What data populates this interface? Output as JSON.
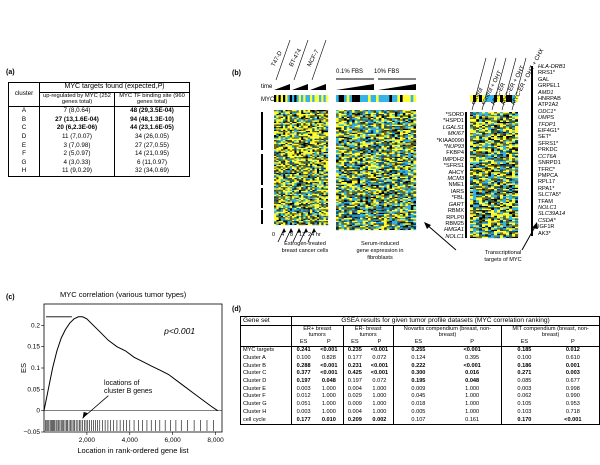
{
  "panel_a": {
    "label": "(a)",
    "header_cluster": "cluster",
    "header_title": "MYC targets found (expected,",
    "header_title_p": "P",
    "header_title_end": ")",
    "col1": "up-regulated by MYC (252 genes total)",
    "col2": "MYC TF binding site (960 genes total)",
    "rows": [
      {
        "c": "A",
        "v1": "7 (8,0.64)",
        "v2": "48 (29,3.5E-04)",
        "b1": false,
        "b2": true
      },
      {
        "c": "B",
        "v1": "27 (13,1.6E-04)",
        "v2": "94 (48,1.3E-10)",
        "b1": true,
        "b2": true
      },
      {
        "c": "C",
        "v1": "20 (6,2.3E-06)",
        "v2": "44 (23,1.6E-05)",
        "b1": true,
        "b2": true
      },
      {
        "c": "D",
        "v1": "11 (7,0.07)",
        "v2": "34 (26,0.05)",
        "b1": false,
        "b2": false
      },
      {
        "c": "E",
        "v1": "3 (7,0.98)",
        "v2": "27 (27,0.55)",
        "b1": false,
        "b2": false
      },
      {
        "c": "F",
        "v1": "2 (5,0.97)",
        "v2": "14 (21,0.95)",
        "b1": false,
        "b2": false
      },
      {
        "c": "G",
        "v1": "4 (3,0.33)",
        "v2": "6 (11,0.97)",
        "b1": false,
        "b2": false
      },
      {
        "c": "H",
        "v1": "11 (9,0.29)",
        "v2": "32 (34,0.69)",
        "b1": false,
        "b2": false
      }
    ]
  },
  "panel_b": {
    "label": "(b)",
    "cell_lines": [
      "T47-D",
      "BT-474",
      "MCF-7"
    ],
    "time_label": "time",
    "myc_label": "MYC",
    "fbs1": "0.1% FBS",
    "fbs2": "10% FBS",
    "conditions": [
      "control",
      "control + OHT",
      "MYC-ER",
      "MYC-ER + OHT",
      "MYC-ER + OHT + CHX"
    ],
    "time_ticks": [
      "0",
      "4",
      "8",
      "12",
      "24 hr"
    ],
    "caption1": [
      "Estrogen-treated",
      "breast cancer cells"
    ],
    "caption2": [
      "Serum-induced",
      "gene expression in",
      "fibroblasts"
    ],
    "caption3": [
      "Transcriptional",
      "targets of MYC"
    ],
    "genes_mid": [
      "*SORD",
      "*HSPD1",
      "LGALS1",
      "MKI67",
      "*KIAA0090",
      "*NUP93",
      "FKBP4",
      "IMPDH2",
      "*SFRS1",
      "AHCY",
      "MCM3",
      "NME1",
      "IARS",
      "*FBL",
      "GART",
      "RBMX",
      "RPLP0",
      "RBM25",
      "HMGA1",
      "NOLC1"
    ],
    "genes_mid_italic": [
      false,
      false,
      true,
      true,
      false,
      true,
      false,
      false,
      false,
      false,
      true,
      false,
      false,
      false,
      true,
      false,
      false,
      false,
      true,
      true
    ],
    "genes_right": [
      "HLA-DRB1",
      "RRS1*",
      "GAL",
      "GRPEL1",
      "AMD1",
      "HNRPAB",
      "ATP2A2",
      "ODC1*",
      "UMPS",
      "TFDP1",
      "EIF4G1*",
      "SET*",
      "SFRS1*",
      "PRKDC",
      "CCT6A",
      "SNRPD1",
      "TFRC*",
      "PMPCA",
      "RPL17",
      "RPA1*",
      "SLC7A5*",
      "TFAM",
      "NOLC1",
      "SLC39A14",
      "CSDA*",
      "IGF1R",
      "AK3*"
    ],
    "genes_right_italic": [
      true,
      false,
      false,
      false,
      true,
      false,
      false,
      true,
      true,
      true,
      false,
      false,
      false,
      false,
      true,
      false,
      false,
      false,
      false,
      false,
      false,
      false,
      true,
      true,
      true,
      false,
      false
    ]
  },
  "panel_c": {
    "label": "(c)",
    "title": "MYC correlation (various tumor types)",
    "ylabel": "ES",
    "xlabel": "Location in rank-ordered gene list",
    "pvalue": "p<0.001",
    "annotation": [
      "locations of",
      "cluster B genes"
    ]
  },
  "chart_data": {
    "type": "line",
    "title": "MYC correlation (various tumor types)",
    "xlabel": "Location in rank-ordered gene list",
    "ylabel": "ES",
    "xlim": [
      0,
      8300
    ],
    "ylim": [
      -0.05,
      0.25
    ],
    "xticks": [
      2000,
      4000,
      6000,
      8000
    ],
    "yticks": [
      -0.05,
      0,
      0.05,
      0.1,
      0.15,
      0.2
    ],
    "ytick_labels": [
      "−0.05",
      "0",
      "0.05",
      "0.1",
      "0.15",
      "0.2"
    ],
    "series": [
      {
        "x": [
          0,
          200,
          400,
          600,
          800,
          1000,
          1200,
          1400,
          1600,
          1800,
          2000,
          2300,
          2600,
          3000,
          3400,
          3800,
          4200,
          4600,
          5000,
          5400,
          5800,
          6200,
          6600,
          7000,
          7400,
          7800,
          8100
        ],
        "values": [
          0.0,
          0.05,
          0.1,
          0.14,
          0.17,
          0.19,
          0.205,
          0.215,
          0.22,
          0.22,
          0.215,
          0.2,
          0.185,
          0.165,
          0.15,
          0.14,
          0.125,
          0.115,
          0.105,
          0.095,
          0.085,
          0.07,
          0.055,
          0.04,
          0.025,
          0.01,
          0.0
        ]
      }
    ],
    "max_es": 0.22,
    "cluster_b_ticks": [
      60,
      130,
      180,
      230,
      290,
      340,
      400,
      450,
      500,
      560,
      610,
      680,
      740,
      800,
      850,
      920,
      980,
      1040,
      1100,
      1170,
      1230,
      1300,
      1360,
      1420,
      1500,
      1580,
      1650,
      1720,
      1800,
      1880,
      1960,
      2040,
      2130,
      2220,
      2300,
      2400,
      2500,
      2600,
      2720,
      2850,
      2980,
      3100,
      3250,
      3400,
      3550,
      3700,
      3850,
      4000,
      4200,
      4400,
      4600,
      4800,
      5000,
      5200,
      5400,
      5650,
      5900,
      6150,
      6400,
      6700,
      7000,
      7300,
      7600,
      7900
    ]
  },
  "panel_d": {
    "label": "(d)",
    "header_gene_set": "Gene set",
    "header_title": "GSEA results for given tumor profile datasets (MYC correlation ranking)",
    "groups": [
      "ER+ breast tumors",
      "ER- breast tumors",
      "Novartis compendium (breast, non-breast)",
      "MIT compendium (breast, non-breast)"
    ],
    "es_label": "ES",
    "p_label": "P",
    "rows": [
      {
        "name": "MYC targets",
        "v": [
          "0.241",
          "<0.001",
          "0.235",
          "<0.001",
          "0.255",
          "<0.001",
          "0.185",
          "0.012"
        ],
        "b": [
          true,
          true,
          true,
          true,
          true,
          true,
          true,
          true
        ]
      },
      {
        "name": "Cluster A",
        "v": [
          "0.100",
          "0.828",
          "0.177",
          "0.072",
          "0.124",
          "0.395",
          "0.100",
          "0.610"
        ],
        "b": [
          false,
          false,
          false,
          false,
          false,
          false,
          false,
          false
        ]
      },
      {
        "name": "Cluster B",
        "v": [
          "0.288",
          "<0.001",
          "0.231",
          "<0.001",
          "0.222",
          "<0.001",
          "0.186",
          "0.001"
        ],
        "b": [
          true,
          true,
          true,
          true,
          true,
          true,
          true,
          true
        ]
      },
      {
        "name": "Cluster C",
        "v": [
          "0.377",
          "<0.001",
          "0.425",
          "<0.001",
          "0.300",
          "0.016",
          "0.271",
          "0.003"
        ],
        "b": [
          true,
          true,
          true,
          true,
          true,
          true,
          true,
          true
        ]
      },
      {
        "name": "Cluster D",
        "v": [
          "0.197",
          "0.048",
          "0.197",
          "0.072",
          "0.195",
          "0.048",
          "0.085",
          "0.677"
        ],
        "b": [
          true,
          true,
          false,
          false,
          true,
          true,
          false,
          false
        ]
      },
      {
        "name": "Cluster E",
        "v": [
          "0.003",
          "1.000",
          "0.004",
          "1.000",
          "0.009",
          "1.000",
          "0.003",
          "0.998"
        ],
        "b": [
          false,
          false,
          false,
          false,
          false,
          false,
          false,
          false
        ]
      },
      {
        "name": "Cluster F",
        "v": [
          "0.012",
          "1.000",
          "0.029",
          "1.000",
          "0.045",
          "1.000",
          "0.062",
          "0.990"
        ],
        "b": [
          false,
          false,
          false,
          false,
          false,
          false,
          false,
          false
        ]
      },
      {
        "name": "Cluster G",
        "v": [
          "0.051",
          "1.000",
          "0.009",
          "1.000",
          "0.018",
          "1.000",
          "0.105",
          "0.953"
        ],
        "b": [
          false,
          false,
          false,
          false,
          false,
          false,
          false,
          false
        ]
      },
      {
        "name": "Cluster H",
        "v": [
          "0.003",
          "1.000",
          "0.004",
          "1.000",
          "0.005",
          "1.000",
          "0.103",
          "0.718"
        ],
        "b": [
          false,
          false,
          false,
          false,
          false,
          false,
          false,
          false
        ]
      },
      {
        "name": "cell cycle",
        "v": [
          "0.177",
          "0.010",
          "0.209",
          "0.002",
          "0.107",
          "0.161",
          "0.170",
          "<0.001"
        ],
        "b": [
          true,
          true,
          true,
          true,
          false,
          false,
          true,
          true
        ]
      }
    ]
  },
  "colors": {
    "high": "#ffff33",
    "low": "#33b3e6",
    "mid": "#000000",
    "gray": "#9a9a9a"
  }
}
